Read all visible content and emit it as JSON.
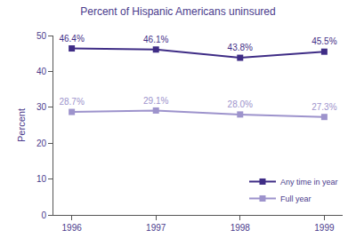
{
  "chart_data": {
    "type": "line",
    "title": "Percent of Hispanic Americans uninsured",
    "y_label": "Percent",
    "categories": [
      "1996",
      "1997",
      "1998",
      "1999"
    ],
    "series": [
      {
        "name": "Any time in year",
        "color": "#3f2d86",
        "values": [
          46.4,
          46.1,
          43.8,
          45.5
        ],
        "value_labels": [
          "46.4%",
          "46.1%",
          "43.8%",
          "45.5%"
        ]
      },
      {
        "name": "Full year",
        "color": "#9d93cc",
        "values": [
          28.7,
          29.1,
          28.0,
          27.3
        ],
        "value_labels": [
          "28.7%",
          "29.1%",
          "28.0%",
          "27.3%"
        ]
      }
    ],
    "ylim": [
      0,
      50
    ],
    "yticks": [
      0,
      10,
      20,
      30,
      40,
      50
    ],
    "grid": false,
    "legend": "lower right",
    "data_labels": true,
    "marker": "square",
    "line_style": "solid"
  }
}
